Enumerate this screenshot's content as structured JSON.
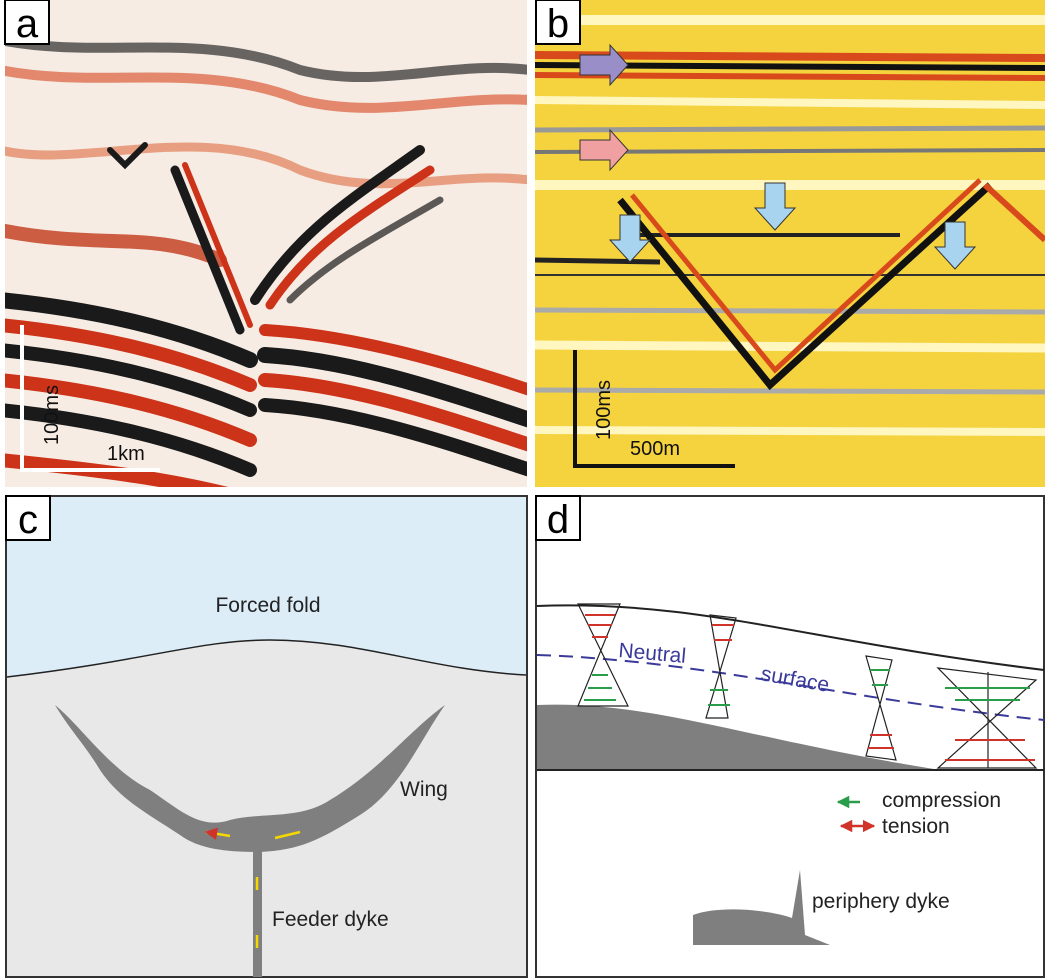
{
  "panels": {
    "a": {
      "label": "a",
      "scale_time": "100ms",
      "scale_distance": "1km"
    },
    "b": {
      "label": "b",
      "scale_time": "100ms",
      "scale_distance": "500m"
    },
    "c": {
      "label": "c",
      "forced_fold": "Forced fold",
      "wing": "Wing",
      "feeder_dyke": "Feeder dyke"
    },
    "d": {
      "label": "d",
      "neutral": "Neutral",
      "surface": "surface",
      "compression": "compression",
      "tension": "tension",
      "periphery_dyke": "periphery dyke"
    }
  }
}
